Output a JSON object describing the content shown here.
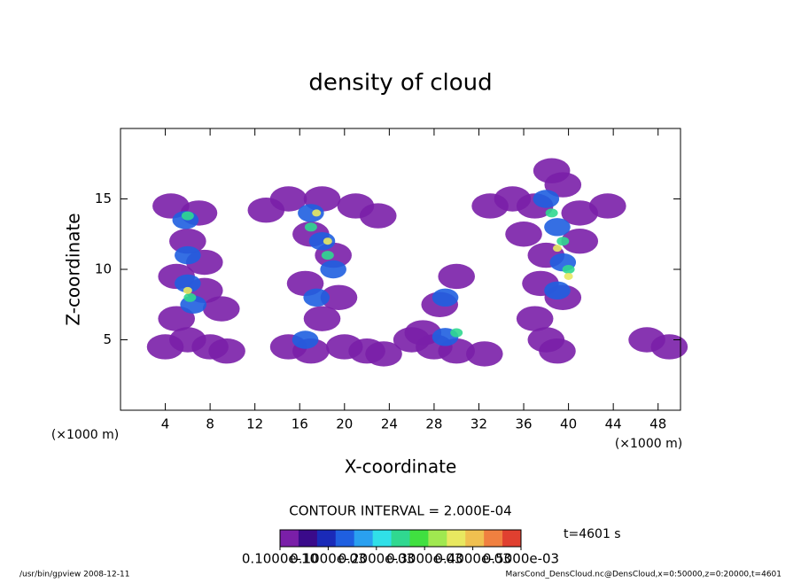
{
  "chart_data": {
    "type": "contour",
    "title": "density of cloud",
    "x_label": "X-coordinate",
    "y_label": "Z-coordinate",
    "x_unit": "(×1000 m)",
    "y_unit": "(×1000 m)",
    "xlim": [
      0,
      50
    ],
    "ylim": [
      0,
      20
    ],
    "xticks": [
      4,
      8,
      12,
      16,
      20,
      24,
      28,
      32,
      36,
      40,
      44,
      48
    ],
    "yticks": [
      5,
      10,
      15
    ],
    "x": [
      4.5,
      7,
      6,
      7.5,
      5,
      7.5,
      9,
      5,
      6,
      8,
      4,
      9.5,
      13,
      15,
      18,
      21,
      23,
      17,
      19,
      16.5,
      19.5,
      18,
      15,
      17,
      20,
      22,
      23.5,
      26,
      28,
      30,
      32.5,
      28.5,
      30,
      27,
      38.5,
      39.5,
      37,
      41,
      43.5,
      36,
      38,
      41,
      37.5,
      39.5,
      37,
      38,
      39,
      47,
      49,
      33,
      35,
      5.8,
      6,
      6,
      6.5,
      17,
      18,
      19,
      17.5,
      16.5,
      29,
      29,
      38,
      39,
      39.5,
      39,
      6,
      6.2,
      17,
      18.5,
      30,
      38.5,
      39.5,
      40,
      6,
      17.5,
      18.5,
      39,
      40
    ],
    "y": [
      14.5,
      14,
      12,
      10.5,
      9.5,
      8.5,
      7.2,
      6.5,
      5,
      4.5,
      4.5,
      4.2,
      14.2,
      15,
      15,
      14.5,
      13.8,
      12.5,
      11,
      9,
      8,
      6.5,
      4.5,
      4.2,
      4.5,
      4.2,
      4,
      5,
      4.5,
      4.2,
      4,
      7.5,
      9.5,
      5.5,
      17,
      16,
      14.5,
      14,
      14.5,
      12.5,
      11,
      12,
      9,
      8,
      6.5,
      5,
      4.2,
      5,
      4.5,
      14.5,
      15,
      13.5,
      11,
      9,
      7.5,
      14,
      12,
      10,
      8,
      5,
      5.2,
      8,
      15,
      13,
      10.5,
      8.5,
      13.8,
      8,
      13,
      11,
      5.5,
      14,
      12,
      10,
      8.5,
      14,
      12,
      11.5,
      9.5
    ],
    "values": [
      2e-05,
      2e-05,
      2e-05,
      2e-05,
      2e-05,
      2e-05,
      2e-05,
      2e-05,
      2e-05,
      2e-05,
      2e-05,
      2e-05,
      2e-05,
      2e-05,
      2e-05,
      2e-05,
      2e-05,
      2e-05,
      2e-05,
      2e-05,
      2e-05,
      2e-05,
      2e-05,
      2e-05,
      2e-05,
      2e-05,
      2e-05,
      2e-05,
      2e-05,
      2e-05,
      2e-05,
      2e-05,
      2e-05,
      2e-05,
      2e-05,
      2e-05,
      2e-05,
      2e-05,
      2e-05,
      2e-05,
      2e-05,
      2e-05,
      2e-05,
      2e-05,
      2e-05,
      2e-05,
      2e-05,
      2e-05,
      2e-05,
      2e-05,
      2e-05,
      0.00012,
      0.00012,
      0.00012,
      0.00012,
      0.00012,
      0.00012,
      0.00012,
      0.00012,
      0.00012,
      0.00012,
      0.00012,
      0.00012,
      0.00012,
      0.00012,
      0.00012,
      0.00025,
      0.00025,
      0.00025,
      0.00025,
      0.00025,
      0.00025,
      0.00025,
      0.00025,
      0.00035,
      0.00035,
      0.00035,
      0.00035,
      0.00035
    ],
    "contour_interval": "CONTOUR INTERVAL = 2.000E-04",
    "time_label": "t=4601 s",
    "colorbar": {
      "clim": [
        0,
        0.0005
      ],
      "colors": [
        "#7a1fa8",
        "#3a0a8a",
        "#1a2ab8",
        "#1f5fe0",
        "#2aa0f0",
        "#30e0e8",
        "#30d890",
        "#40e040",
        "#a0e850",
        "#e8e860",
        "#f0c050",
        "#f08040",
        "#e04030"
      ],
      "ticks": [
        {
          "value": 1e-11,
          "label": "0.1000e-10"
        },
        {
          "value": 0.0001,
          "label": "0.1000e-03"
        },
        {
          "value": 0.0002,
          "label": "0.2000e-03"
        },
        {
          "value": 0.0003,
          "label": "0.3000e-03"
        },
        {
          "value": 0.0004,
          "label": "0.4000e-03"
        },
        {
          "value": 0.0005,
          "label": "0.5000e-03"
        }
      ]
    },
    "footer_left": "/usr/bin/gpview   2008-12-11",
    "footer_right": "MarsCond_DensCloud.nc@DensCloud,x=0:50000,z=0:20000,t=4601"
  }
}
